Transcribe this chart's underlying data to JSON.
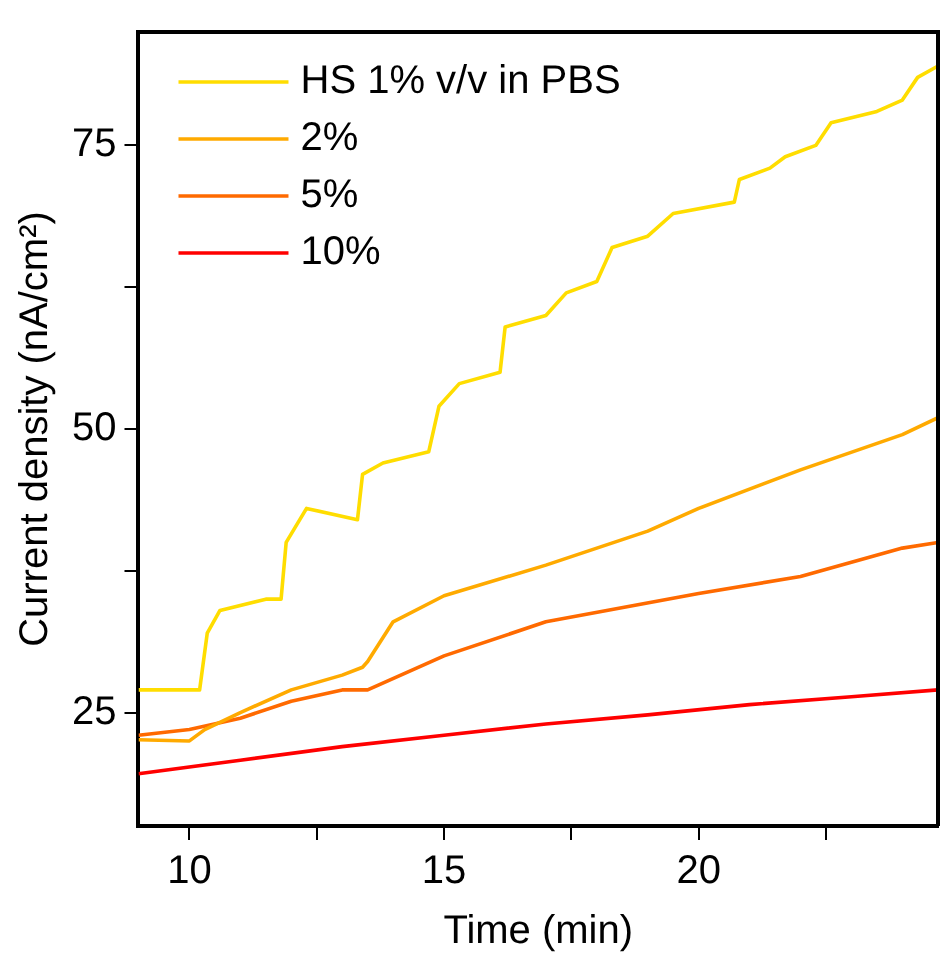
{
  "chart_data": {
    "type": "line",
    "xlabel": "Time (min)",
    "ylabel": "Current density (nA/cm²)",
    "xlim": [
      9,
      24.7
    ],
    "xticks": [
      10,
      {
        "value": 12.5,
        "label": null
      },
      15,
      {
        "value": 17.5,
        "label": null
      },
      20,
      {
        "value": 22.5,
        "label": null
      }
    ],
    "ylim": [
      15,
      85
    ],
    "yticks": [
      25,
      {
        "value": 37.5,
        "label": null
      },
      50,
      {
        "value": 62.5,
        "label": null
      },
      75
    ],
    "grid": false,
    "legend": "top left",
    "marker": "none",
    "line_style": "solid",
    "series": [
      {
        "name": "HS 1% v/v in PBS",
        "color": "#ffdd00",
        "x": [
          9,
          10.2,
          10.35,
          10.6,
          11.5,
          11.8,
          11.9,
          12.3,
          13.3,
          13.4,
          13.8,
          14.7,
          14.9,
          15.3,
          16.1,
          16.2,
          17,
          17.4,
          18,
          18.3,
          19,
          19.5,
          20.7,
          20.8,
          21.4,
          21.7,
          22.3,
          22.6,
          23.5,
          24,
          24.3,
          24.7
        ],
        "values": [
          27,
          27,
          32,
          34,
          35,
          35,
          40,
          43,
          42,
          46,
          47,
          48,
          52,
          54,
          55,
          59,
          60,
          62,
          63,
          66,
          67,
          69,
          70,
          72,
          73,
          74,
          75,
          77,
          78,
          79,
          81,
          82
        ]
      },
      {
        "name": "2%",
        "color": "#ffaa00",
        "x": [
          9,
          10,
          10.3,
          11,
          12,
          13,
          13.4,
          13.5,
          14,
          15,
          17,
          19,
          20,
          22,
          24,
          24.7
        ],
        "values": [
          22.6,
          22.5,
          23.5,
          25,
          27,
          28.3,
          29,
          29.5,
          33,
          35.3,
          38,
          41,
          43,
          46.4,
          49.5,
          51
        ]
      },
      {
        "name": "5%",
        "color": "#ff6a00",
        "x": [
          9,
          10,
          11,
          12,
          13,
          13.5,
          15,
          17,
          20,
          22,
          24,
          24.7
        ],
        "values": [
          23,
          23.5,
          24.5,
          26,
          27,
          27,
          30,
          33,
          35.5,
          37,
          39.5,
          40
        ]
      },
      {
        "name": "10%",
        "color": "#ff0000",
        "x": [
          9,
          11,
          13,
          15,
          17,
          19,
          21,
          23,
          24.7
        ],
        "values": [
          19.6,
          20.8,
          22,
          23,
          24,
          24.8,
          25.7,
          26.4,
          27
        ]
      }
    ]
  }
}
